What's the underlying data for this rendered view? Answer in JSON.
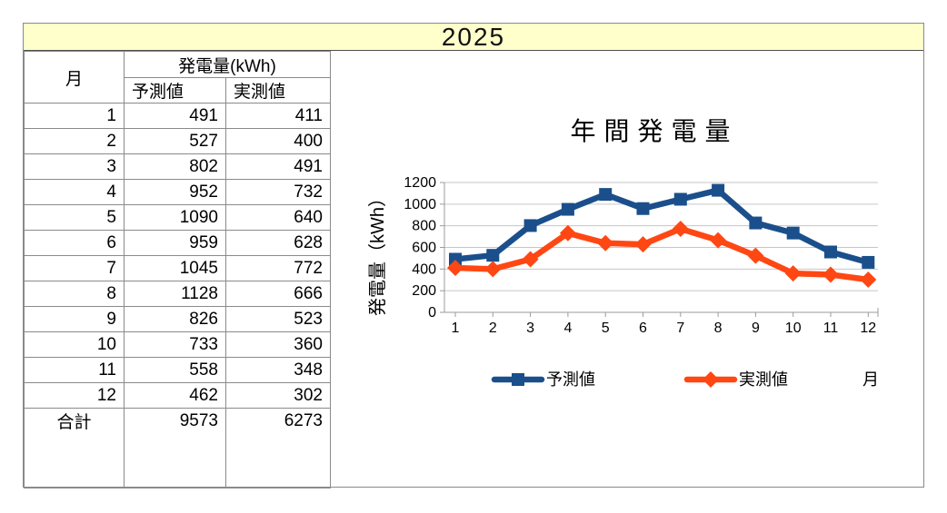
{
  "sheet_title": "2025",
  "table": {
    "col_month_header": "月",
    "col_group_header": "発電量(kWh)",
    "col_forecast_header": "予測値",
    "col_actual_header": "実測値",
    "rows": [
      {
        "month": "1",
        "forecast": "491",
        "actual": "411"
      },
      {
        "month": "2",
        "forecast": "527",
        "actual": "400"
      },
      {
        "month": "3",
        "forecast": "802",
        "actual": "491"
      },
      {
        "month": "4",
        "forecast": "952",
        "actual": "732"
      },
      {
        "month": "5",
        "forecast": "1090",
        "actual": "640"
      },
      {
        "month": "6",
        "forecast": "959",
        "actual": "628"
      },
      {
        "month": "7",
        "forecast": "1045",
        "actual": "772"
      },
      {
        "month": "8",
        "forecast": "1128",
        "actual": "666"
      },
      {
        "month": "9",
        "forecast": "826",
        "actual": "523"
      },
      {
        "month": "10",
        "forecast": "733",
        "actual": "360"
      },
      {
        "month": "11",
        "forecast": "558",
        "actual": "348"
      },
      {
        "month": "12",
        "forecast": "462",
        "actual": "302"
      }
    ],
    "total": {
      "label": "合計",
      "forecast": "9573",
      "actual": "6273"
    }
  },
  "chart_data": {
    "type": "line",
    "title": "年間発電量",
    "xlabel": "月",
    "ylabel": "発電量（kWh）",
    "categories": [
      1,
      2,
      3,
      4,
      5,
      6,
      7,
      8,
      9,
      10,
      11,
      12
    ],
    "series": [
      {
        "name": "予測値",
        "marker": "square",
        "color": "#1a4f8b",
        "values": [
          491,
          527,
          802,
          952,
          1090,
          959,
          1045,
          1128,
          826,
          733,
          558,
          462
        ]
      },
      {
        "name": "実測値",
        "marker": "diamond",
        "color": "#ff4713",
        "values": [
          411,
          400,
          491,
          732,
          640,
          628,
          772,
          666,
          523,
          360,
          348,
          302
        ]
      }
    ],
    "ylim": [
      0,
      1200
    ],
    "ytick_step": 200,
    "grid": true,
    "legend_position": "bottom"
  },
  "colors": {
    "title_band_bg": "#ffffcc",
    "border_gray": "#8a8a8a",
    "gridline": "#c6c6c6",
    "axis": "#9b9b9b",
    "series_forecast": "#1a4f8b",
    "series_actual": "#ff4713"
  }
}
